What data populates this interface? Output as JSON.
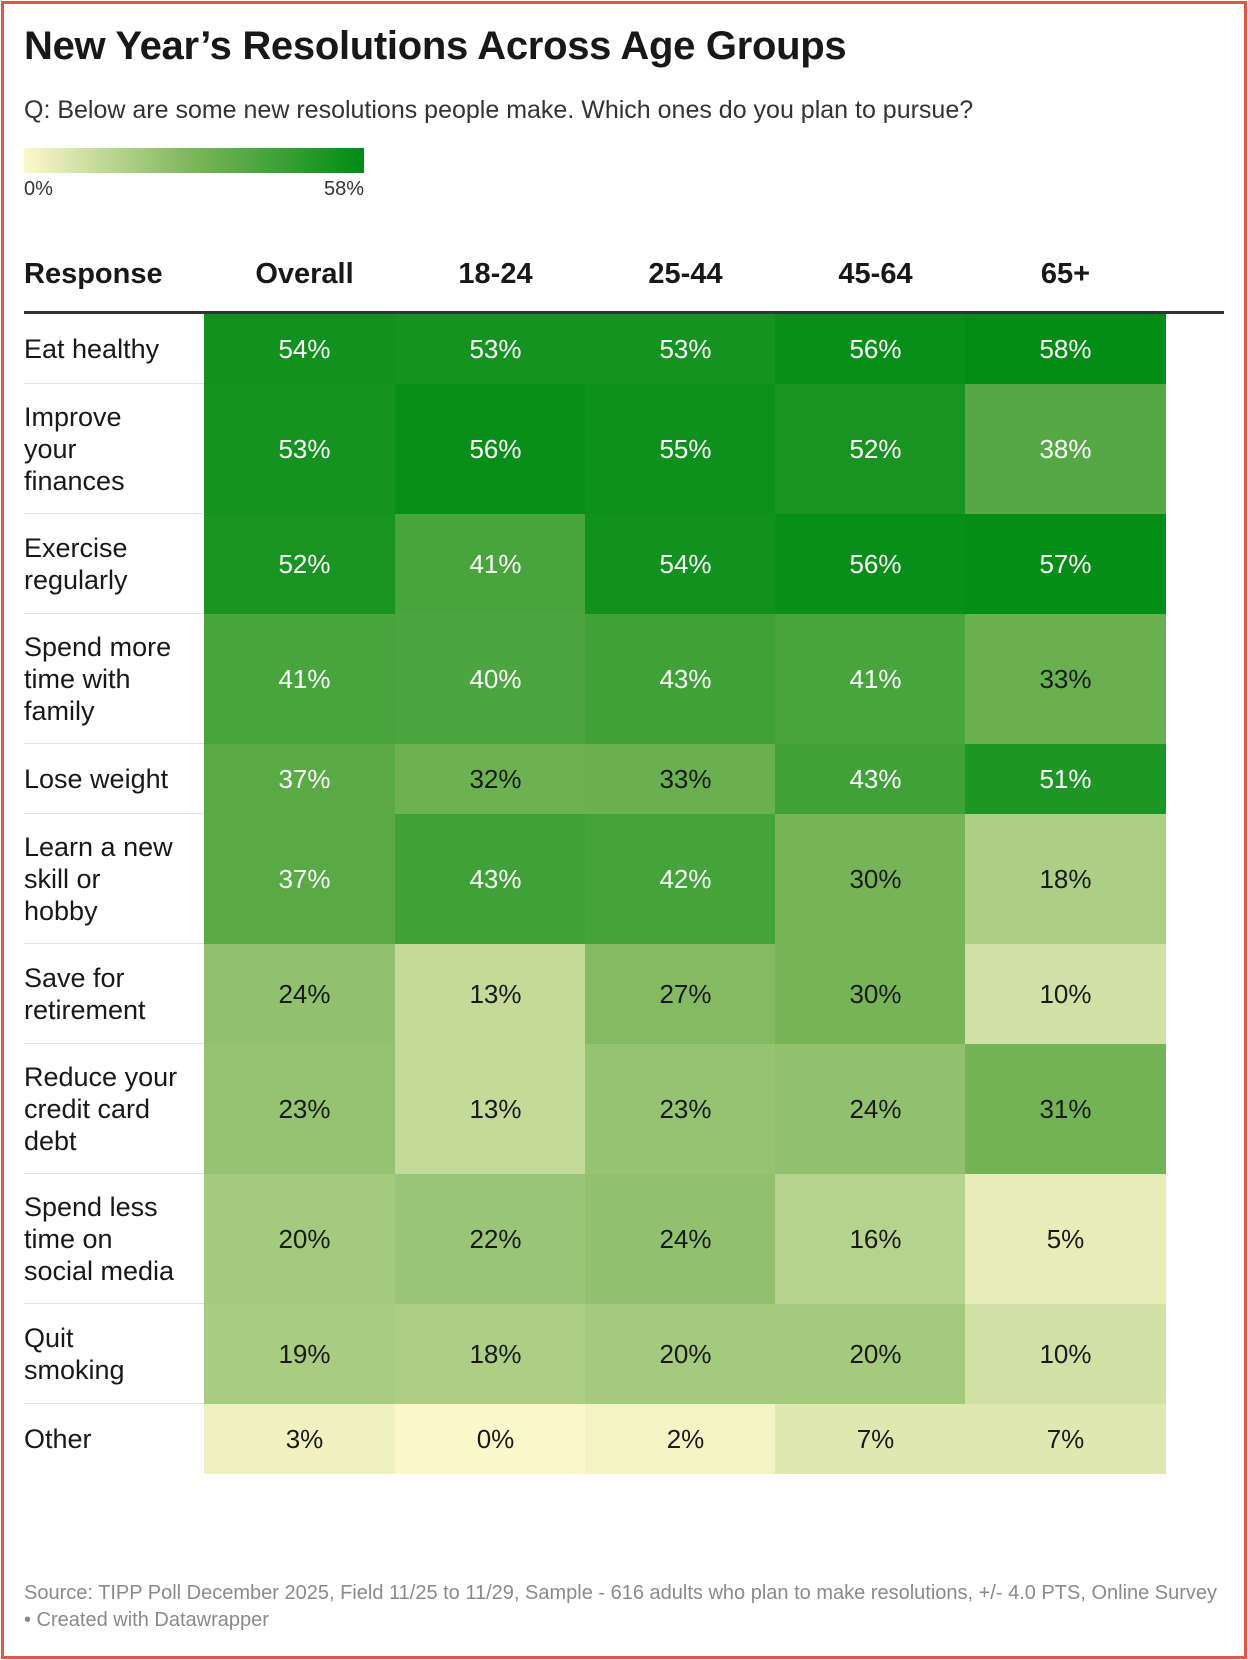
{
  "title": "New Year’s Resolutions Across Age Groups",
  "subtitle": "Q: Below are some new resolutions people make. Which ones do you plan to pursue?",
  "legend": {
    "min_label": "0%",
    "max_label": "58%",
    "min_value": 0,
    "max_value": 58,
    "color_low": "#fdf8cc",
    "color_mid": "#7bb55a",
    "color_high": "#008c15"
  },
  "chart_data": {
    "type": "table",
    "title": "New Year’s Resolutions Across Age Groups",
    "subtitle": "Q: Below are some new resolutions people make. Which ones do you plan to pursue?",
    "row_header": "Response",
    "columns": [
      "Overall",
      "18-24",
      "25-44",
      "45-64",
      "65+"
    ],
    "unit": "%",
    "rows": [
      {
        "label": "Eat healthy",
        "lines": [
          "Eat healthy"
        ],
        "values": [
          54,
          53,
          53,
          56,
          58
        ]
      },
      {
        "label": "Improve your finances",
        "lines": [
          "Improve",
          "your",
          "finances"
        ],
        "values": [
          53,
          56,
          55,
          52,
          38
        ]
      },
      {
        "label": "Exercise regularly",
        "lines": [
          "Exercise",
          "regularly"
        ],
        "values": [
          52,
          41,
          54,
          56,
          57
        ]
      },
      {
        "label": "Spend more time with family",
        "lines": [
          "Spend more",
          "time with",
          "family"
        ],
        "values": [
          41,
          40,
          43,
          41,
          33
        ]
      },
      {
        "label": "Lose weight",
        "lines": [
          "Lose weight"
        ],
        "values": [
          37,
          32,
          33,
          43,
          51
        ]
      },
      {
        "label": "Learn a new skill or hobby",
        "lines": [
          "Learn a new",
          "skill or",
          "hobby"
        ],
        "values": [
          37,
          43,
          42,
          30,
          18
        ]
      },
      {
        "label": "Save for retirement",
        "lines": [
          "Save for",
          "retirement"
        ],
        "values": [
          24,
          13,
          27,
          30,
          10
        ]
      },
      {
        "label": "Reduce your credit card debt",
        "lines": [
          "Reduce your",
          "credit card",
          "debt"
        ],
        "values": [
          23,
          13,
          23,
          24,
          31
        ]
      },
      {
        "label": "Spend less time on social media",
        "lines": [
          "Spend less",
          "time on",
          "social media"
        ],
        "values": [
          20,
          22,
          24,
          16,
          5
        ]
      },
      {
        "label": "Quit smoking",
        "lines": [
          "Quit",
          "smoking"
        ],
        "values": [
          19,
          18,
          20,
          20,
          10
        ]
      },
      {
        "label": "Other",
        "lines": [
          "Other"
        ],
        "values": [
          3,
          0,
          2,
          7,
          7
        ]
      }
    ]
  },
  "source": "Source: TIPP Poll December 2025, Field 11/25 to 11/29, Sample - 616 adults who plan to make resolutions, +/- 4.0 PTS, Online Survey • Created with Datawrapper"
}
